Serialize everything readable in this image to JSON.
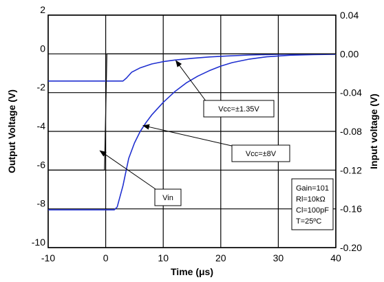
{
  "chart_data": {
    "type": "line",
    "xlabel": "Time (μs)",
    "ylabel_left": "Output Voltage (V)",
    "ylabel_right": "Input voltage (V)",
    "xlim": [
      -10,
      40
    ],
    "ylim_left": [
      -10,
      2
    ],
    "ylim_right": [
      -0.2,
      0.04
    ],
    "x_ticks": [
      "-10",
      "0",
      "10",
      "20",
      "30",
      "40"
    ],
    "y_ticks_left": [
      "2",
      "0",
      "-2",
      "-4",
      "-6",
      "-8",
      "-10"
    ],
    "y_ticks_right": [
      "0.04",
      "0.00",
      "-0.04",
      "-0.08",
      "-0.12",
      "-0.16",
      "-0.20"
    ],
    "grid": true,
    "series": [
      {
        "name": "Vcc=±1.35V",
        "axis": "left",
        "color": "#1f2fd0",
        "x": [
          -10,
          0,
          2,
          3,
          3.6,
          4.5,
          6,
          8,
          10,
          12,
          15,
          18,
          21,
          25,
          30,
          35,
          40
        ],
        "y": [
          -1.4,
          -1.4,
          -1.4,
          -1.4,
          -1.25,
          -0.95,
          -0.72,
          -0.52,
          -0.4,
          -0.32,
          -0.23,
          -0.16,
          -0.11,
          -0.06,
          -0.02,
          -0.01,
          -0.01
        ]
      },
      {
        "name": "Vcc=±8V",
        "axis": "left",
        "color": "#1f2fd0",
        "x": [
          -10,
          0,
          1.5,
          2,
          3,
          4,
          5,
          6,
          7,
          8,
          10,
          12,
          14,
          16,
          18,
          20,
          22,
          25,
          28,
          32,
          36,
          40
        ],
        "y": [
          -8.05,
          -8.05,
          -8.05,
          -7.9,
          -6.8,
          -5.4,
          -4.6,
          -4.0,
          -3.55,
          -3.15,
          -2.5,
          -1.95,
          -1.5,
          -1.15,
          -0.87,
          -0.63,
          -0.45,
          -0.27,
          -0.15,
          -0.07,
          -0.04,
          -0.02
        ]
      },
      {
        "name": "Vin",
        "axis": "right",
        "color": "#111111",
        "x": [
          -10,
          -0.2,
          0.2,
          40
        ],
        "y": [
          -0.12,
          -0.12,
          0.0,
          0.0
        ]
      }
    ],
    "annotations": [
      {
        "label": "Vcc=±1.35V",
        "target_x": 12.2,
        "target_y": -0.35
      },
      {
        "label": "Vcc=±8V",
        "target_x": 6.5,
        "target_y": -3.7
      },
      {
        "label": "Vin",
        "target_x": -1.0,
        "target_y": -5.0
      }
    ],
    "conditions_box": [
      "Gain=101",
      "Rl=10kΩ",
      "Cl=100pF",
      "T=25ºC"
    ]
  }
}
